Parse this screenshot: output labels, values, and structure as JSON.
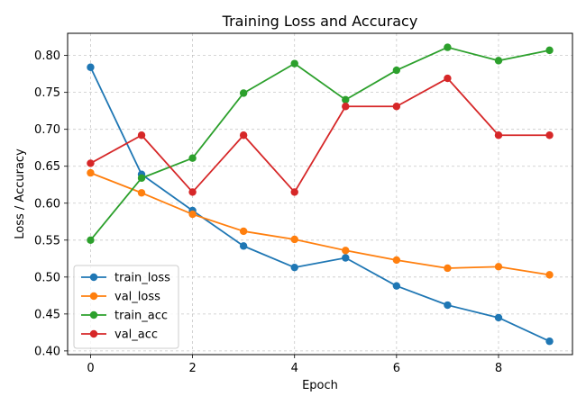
{
  "chart_data": {
    "type": "line",
    "title": "Training Loss and Accuracy",
    "xlabel": "Epoch",
    "ylabel": "Loss / Accuracy",
    "x": [
      0,
      1,
      2,
      3,
      4,
      5,
      6,
      7,
      8,
      9
    ],
    "xlim": [
      -0.45,
      9.45
    ],
    "ylim": [
      0.395,
      0.83
    ],
    "xticks": [
      0,
      2,
      4,
      6,
      8
    ],
    "xtick_labels": [
      "0",
      "2",
      "4",
      "6",
      "8"
    ],
    "yticks": [
      0.4,
      0.45,
      0.5,
      0.55,
      0.6,
      0.65,
      0.7,
      0.75,
      0.8
    ],
    "ytick_labels": [
      "0.40",
      "0.45",
      "0.50",
      "0.55",
      "0.60",
      "0.65",
      "0.70",
      "0.75",
      "0.80"
    ],
    "grid": true,
    "legend_position": "lower-left",
    "series": [
      {
        "name": "train_loss",
        "color": "#1f77b4",
        "values": [
          0.784,
          0.639,
          0.59,
          0.542,
          0.513,
          0.526,
          0.488,
          0.462,
          0.445,
          0.413
        ]
      },
      {
        "name": "val_loss",
        "color": "#ff7f0e",
        "values": [
          0.641,
          0.614,
          0.585,
          0.562,
          0.551,
          0.536,
          0.523,
          0.512,
          0.514,
          0.503
        ]
      },
      {
        "name": "train_acc",
        "color": "#2ca02c",
        "values": [
          0.55,
          0.634,
          0.661,
          0.749,
          0.789,
          0.74,
          0.78,
          0.811,
          0.793,
          0.807
        ]
      },
      {
        "name": "val_acc",
        "color": "#d62728",
        "values": [
          0.654,
          0.692,
          0.615,
          0.692,
          0.615,
          0.731,
          0.731,
          0.769,
          0.692,
          0.692
        ]
      }
    ]
  }
}
